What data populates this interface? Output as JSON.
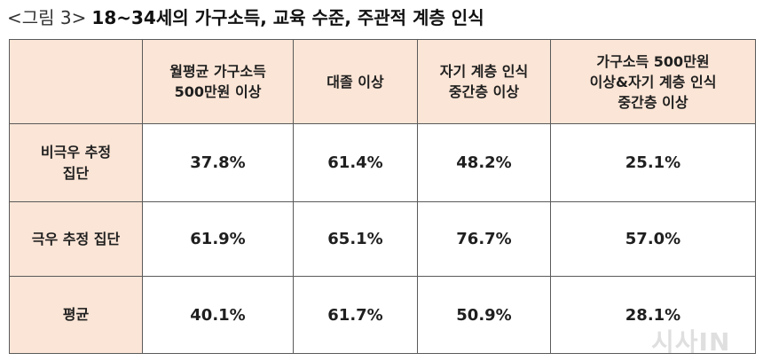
{
  "chart_data": {
    "type": "table",
    "figure_label": "<그림 3>",
    "title": "18~34세의 가구소득, 교육 수준, 주관적 계층 인식",
    "columns": [
      "월평균 가구소득\n500만원 이상",
      "대졸 이상",
      "자기 계층 인식\n중간층 이상",
      "가구소득 500만원\n이상&자기 계층 인식\n중간층 이상"
    ],
    "rows": [
      {
        "label": "비극우 추정\n집단",
        "values": [
          "37.8%",
          "61.4%",
          "48.2%",
          "25.1%"
        ]
      },
      {
        "label": "극우 추정 집단",
        "values": [
          "61.9%",
          "65.1%",
          "76.7%",
          "57.0%"
        ]
      },
      {
        "label": "평균",
        "values": [
          "40.1%",
          "61.7%",
          "50.9%",
          "28.1%"
        ]
      }
    ]
  },
  "colors": {
    "header_bg": "#FBE5D6",
    "border": "#5a5a5a",
    "text": "#1f1f1f"
  },
  "watermark": "시사IN"
}
